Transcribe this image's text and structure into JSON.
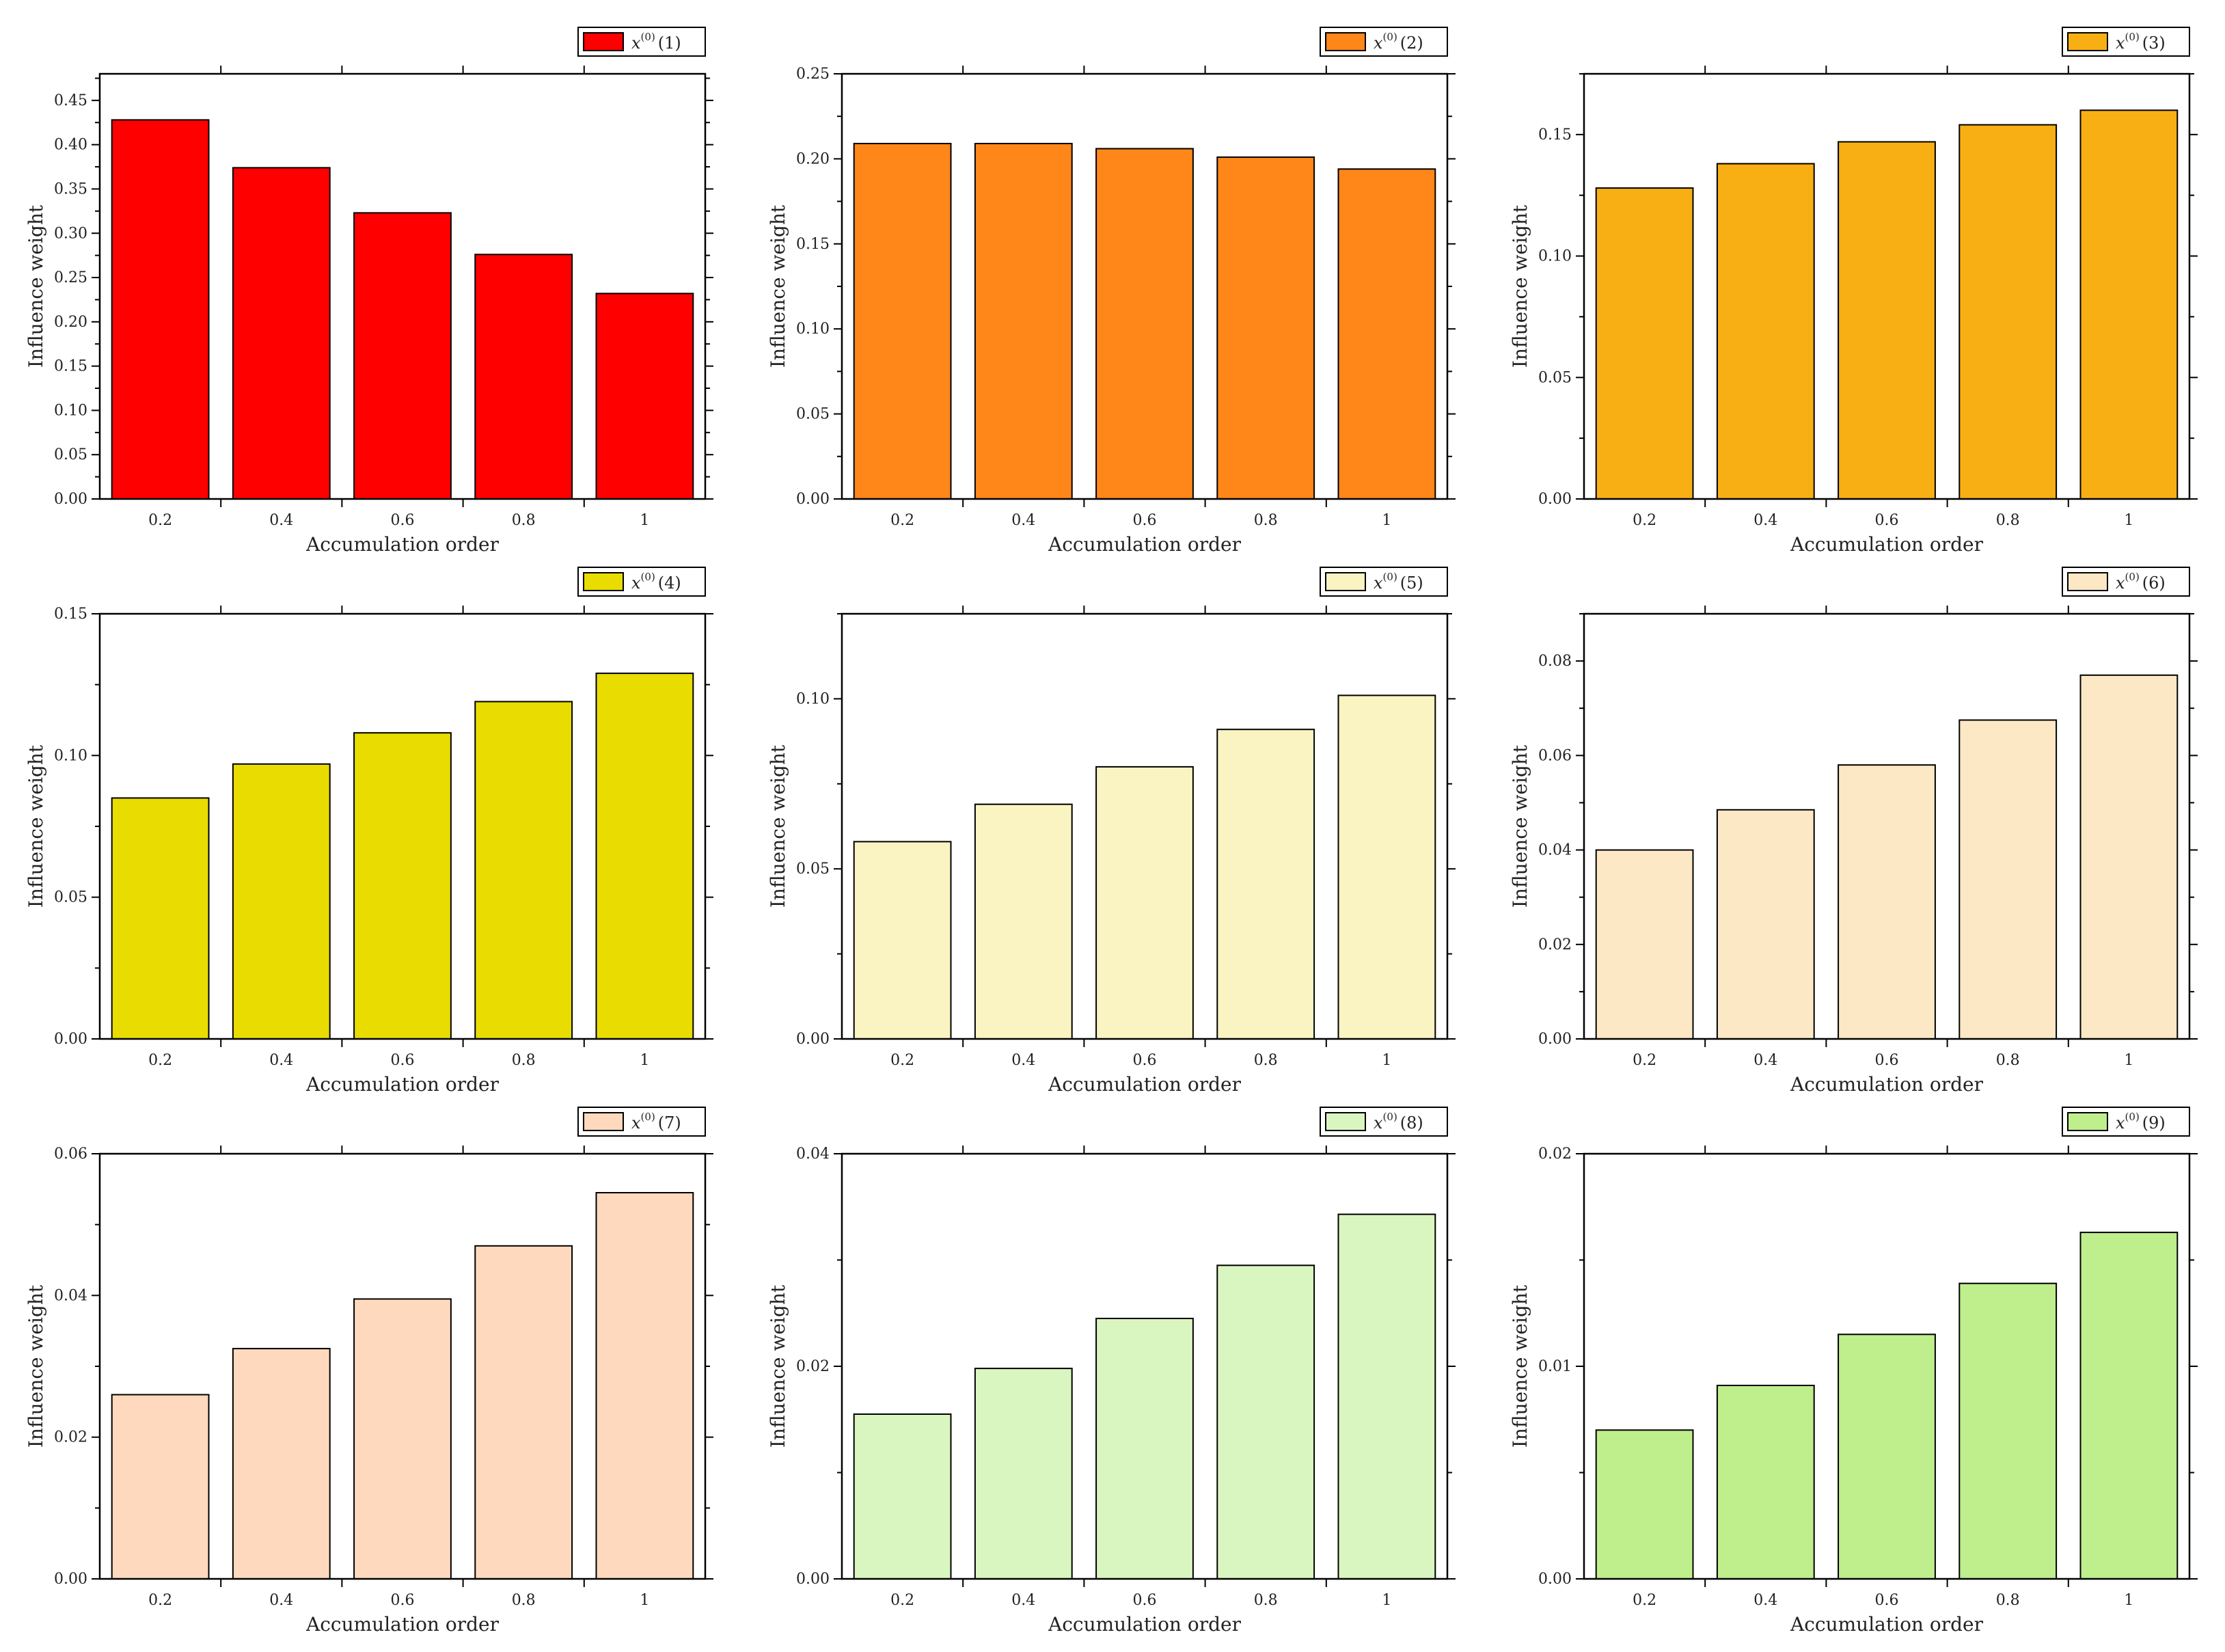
{
  "chart_data": [
    {
      "type": "bar",
      "categories": [
        "0.2",
        "0.4",
        "0.6",
        "0.8",
        "1"
      ],
      "series": [
        {
          "name": "x(0)(1)",
          "legend": {
            "var": "x",
            "sup": "(0)",
            "idx": "(1)"
          },
          "values": [
            0.428,
            0.374,
            0.323,
            0.276,
            0.232
          ],
          "color": "#ff0000"
        }
      ],
      "xlabel": "Accumulation order",
      "ylabel": "Influence weight",
      "ylim": [
        0,
        0.48
      ],
      "yticks": [
        "0.00",
        "0.05",
        "0.10",
        "0.15",
        "0.20",
        "0.25",
        "0.30",
        "0.35",
        "0.40",
        "0.45"
      ],
      "grid": false,
      "legend_position": "top-right"
    },
    {
      "type": "bar",
      "categories": [
        "0.2",
        "0.4",
        "0.6",
        "0.8",
        "1"
      ],
      "series": [
        {
          "name": "x(0)(2)",
          "legend": {
            "var": "x",
            "sup": "(0)",
            "idx": "(2)"
          },
          "values": [
            0.209,
            0.209,
            0.206,
            0.201,
            0.194
          ],
          "color": "#ff8619"
        }
      ],
      "xlabel": "Accumulation order",
      "ylabel": "Influence weight",
      "ylim": [
        0,
        0.25
      ],
      "yticks": [
        "0.00",
        "0.05",
        "0.10",
        "0.15",
        "0.20",
        "0.25"
      ],
      "grid": false,
      "legend_position": "top-right"
    },
    {
      "type": "bar",
      "categories": [
        "0.2",
        "0.4",
        "0.6",
        "0.8",
        "1"
      ],
      "series": [
        {
          "name": "x(0)(3)",
          "legend": {
            "var": "x",
            "sup": "(0)",
            "idx": "(3)"
          },
          "values": [
            0.128,
            0.138,
            0.147,
            0.154,
            0.16
          ],
          "color": "#f8af13"
        }
      ],
      "xlabel": "Accumulation order",
      "ylabel": "Influence weight",
      "ylim": [
        0,
        0.175
      ],
      "yticks": [
        "0.00",
        "0.05",
        "0.10",
        "0.15"
      ],
      "grid": false,
      "legend_position": "top-right"
    },
    {
      "type": "bar",
      "categories": [
        "0.2",
        "0.4",
        "0.6",
        "0.8",
        "1"
      ],
      "series": [
        {
          "name": "x(0)(4)",
          "legend": {
            "var": "x",
            "sup": "(0)",
            "idx": "(4)"
          },
          "values": [
            0.085,
            0.097,
            0.108,
            0.119,
            0.129
          ],
          "color": "#e8dc00"
        }
      ],
      "xlabel": "Accumulation order",
      "ylabel": "Influence weight",
      "ylim": [
        0,
        0.15
      ],
      "yticks": [
        "0.00",
        "0.05",
        "0.10",
        "0.15"
      ],
      "grid": false,
      "legend_position": "top-right"
    },
    {
      "type": "bar",
      "categories": [
        "0.2",
        "0.4",
        "0.6",
        "0.8",
        "1"
      ],
      "series": [
        {
          "name": "x(0)(5)",
          "legend": {
            "var": "x",
            "sup": "(0)",
            "idx": "(5)"
          },
          "values": [
            0.058,
            0.069,
            0.08,
            0.091,
            0.101
          ],
          "color": "#f9f4c2"
        }
      ],
      "xlabel": "Accumulation order",
      "ylabel": "Influence weight",
      "ylim": [
        0,
        0.125
      ],
      "yticks": [
        "0.00",
        "0.05",
        "0.10"
      ],
      "grid": false,
      "legend_position": "top-right"
    },
    {
      "type": "bar",
      "categories": [
        "0.2",
        "0.4",
        "0.6",
        "0.8",
        "1"
      ],
      "series": [
        {
          "name": "x(0)(6)",
          "legend": {
            "var": "x",
            "sup": "(0)",
            "idx": "(6)"
          },
          "values": [
            0.04,
            0.0485,
            0.058,
            0.0675,
            0.077
          ],
          "color": "#fde8c6"
        }
      ],
      "xlabel": "Accumulation order",
      "ylabel": "Influence weight",
      "ylim": [
        0,
        0.09
      ],
      "yticks": [
        "0.00",
        "0.02",
        "0.04",
        "0.06",
        "0.08"
      ],
      "grid": false,
      "legend_position": "top-right"
    },
    {
      "type": "bar",
      "categories": [
        "0.2",
        "0.4",
        "0.6",
        "0.8",
        "1"
      ],
      "series": [
        {
          "name": "x(0)(7)",
          "legend": {
            "var": "x",
            "sup": "(0)",
            "idx": "(7)"
          },
          "values": [
            0.026,
            0.0325,
            0.0395,
            0.047,
            0.0545
          ],
          "color": "#fed9bd"
        }
      ],
      "xlabel": "Accumulation order",
      "ylabel": "Influence weight",
      "ylim": [
        0,
        0.06
      ],
      "yticks": [
        "0.00",
        "0.02",
        "0.04",
        "0.06"
      ],
      "grid": false,
      "legend_position": "top-right"
    },
    {
      "type": "bar",
      "categories": [
        "0.2",
        "0.4",
        "0.6",
        "0.8",
        "1"
      ],
      "series": [
        {
          "name": "x(0)(8)",
          "legend": {
            "var": "x",
            "sup": "(0)",
            "idx": "(8)"
          },
          "values": [
            0.0155,
            0.0198,
            0.0245,
            0.0295,
            0.0343
          ],
          "color": "#daf6c0"
        }
      ],
      "xlabel": "Accumulation order",
      "ylabel": "Influence weight",
      "ylim": [
        0,
        0.04
      ],
      "yticks": [
        "0.00",
        "0.02",
        "0.04"
      ],
      "grid": false,
      "legend_position": "top-right"
    },
    {
      "type": "bar",
      "categories": [
        "0.2",
        "0.4",
        "0.6",
        "0.8",
        "1"
      ],
      "series": [
        {
          "name": "x(0)(9)",
          "legend": {
            "var": "x",
            "sup": "(0)",
            "idx": "(9)"
          },
          "values": [
            0.007,
            0.0091,
            0.0115,
            0.0139,
            0.0163
          ],
          "color": "#bfee8d"
        }
      ],
      "xlabel": "Accumulation order",
      "ylabel": "Influence weight",
      "ylim": [
        0,
        0.02
      ],
      "yticks": [
        "0.00",
        "0.01",
        "0.02"
      ],
      "grid": false,
      "legend_position": "top-right"
    }
  ]
}
